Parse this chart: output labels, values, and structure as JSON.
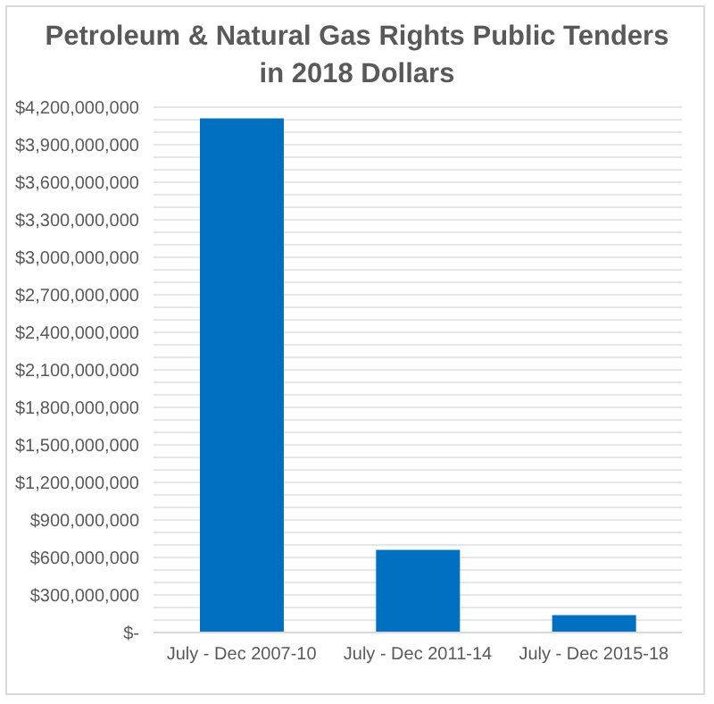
{
  "chart_data": {
    "type": "bar",
    "title": "Petroleum & Natural Gas Rights Public Tenders in 2018 Dollars",
    "categories": [
      "July - Dec 2007-10",
      "July - Dec 2011-14",
      "July - Dec 2015-18"
    ],
    "values": [
      4110000000,
      660000000,
      140000000
    ],
    "color": "#0070c0",
    "ylim": [
      0,
      4200000000
    ],
    "yticks": [
      {
        "value": 0,
        "label": "$-"
      },
      {
        "value": 100000000,
        "label": null
      },
      {
        "value": 200000000,
        "label": null
      },
      {
        "value": 300000000,
        "label": "$300,000,000"
      },
      {
        "value": 400000000,
        "label": null
      },
      {
        "value": 500000000,
        "label": null
      },
      {
        "value": 600000000,
        "label": "$600,000,000"
      },
      {
        "value": 700000000,
        "label": null
      },
      {
        "value": 800000000,
        "label": null
      },
      {
        "value": 900000000,
        "label": "$900,000,000"
      },
      {
        "value": 1000000000,
        "label": null
      },
      {
        "value": 1100000000,
        "label": null
      },
      {
        "value": 1200000000,
        "label": "$1,200,000,000"
      },
      {
        "value": 1300000000,
        "label": null
      },
      {
        "value": 1400000000,
        "label": null
      },
      {
        "value": 1500000000,
        "label": "$1,500,000,000"
      },
      {
        "value": 1600000000,
        "label": null
      },
      {
        "value": 1700000000,
        "label": null
      },
      {
        "value": 1800000000,
        "label": "$1,800,000,000"
      },
      {
        "value": 1900000000,
        "label": null
      },
      {
        "value": 2000000000,
        "label": null
      },
      {
        "value": 2100000000,
        "label": "$2,100,000,000"
      },
      {
        "value": 2200000000,
        "label": null
      },
      {
        "value": 2300000000,
        "label": null
      },
      {
        "value": 2400000000,
        "label": "$2,400,000,000"
      },
      {
        "value": 2500000000,
        "label": null
      },
      {
        "value": 2600000000,
        "label": null
      },
      {
        "value": 2700000000,
        "label": "$2,700,000,000"
      },
      {
        "value": 2800000000,
        "label": null
      },
      {
        "value": 2900000000,
        "label": null
      },
      {
        "value": 3000000000,
        "label": "$3,000,000,000"
      },
      {
        "value": 3100000000,
        "label": null
      },
      {
        "value": 3200000000,
        "label": null
      },
      {
        "value": 3300000000,
        "label": "$3,300,000,000"
      },
      {
        "value": 3400000000,
        "label": null
      },
      {
        "value": 3500000000,
        "label": null
      },
      {
        "value": 3600000000,
        "label": "$3,600,000,000"
      },
      {
        "value": 3700000000,
        "label": null
      },
      {
        "value": 3800000000,
        "label": null
      },
      {
        "value": 3900000000,
        "label": "$3,900,000,000"
      },
      {
        "value": 4000000000,
        "label": null
      },
      {
        "value": 4100000000,
        "label": null
      },
      {
        "value": 4200000000,
        "label": "$4,200,000,000"
      }
    ],
    "grid": "y"
  }
}
